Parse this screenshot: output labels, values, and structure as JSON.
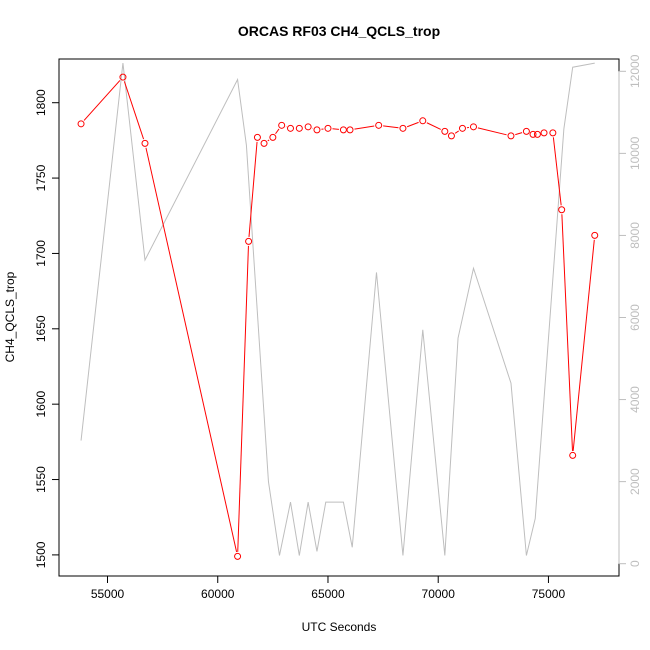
{
  "chart_data": {
    "type": "line",
    "title": "ORCAS RF03 CH4_QCLS_trop",
    "xlabel": "UTC Seconds",
    "ylabel": "CH4_QCLS_trop",
    "xlim": [
      52800,
      78200
    ],
    "ylim": [
      1486,
      1829
    ],
    "y2lim": [
      -300,
      12300
    ],
    "x_ticks": [
      55000,
      60000,
      65000,
      70000,
      75000
    ],
    "y_ticks": [
      1500,
      1550,
      1600,
      1650,
      1700,
      1750,
      1800
    ],
    "y2_ticks": [
      0,
      2000,
      4000,
      6000,
      8000,
      10000,
      12000
    ],
    "colors": {
      "primary": "#ff0000",
      "secondary": "#bebebe",
      "axis": "#000000",
      "axis2": "#bebebe"
    },
    "series": [
      {
        "axis": "left",
        "style": "line+points",
        "x": [
          53800,
          55700,
          56700,
          60900,
          61400,
          61800,
          62100,
          62500,
          62900,
          63300,
          63700,
          64100,
          64500,
          65000,
          65700,
          66000,
          67300,
          68400,
          69300,
          70300,
          70600,
          71100,
          71600,
          73300,
          74000,
          74300,
          74500,
          74800,
          75200,
          75600,
          76100,
          77100
        ],
        "y": [
          1786,
          1817,
          1773,
          1499,
          1708,
          1777,
          1773,
          1777,
          1785,
          1783,
          1783,
          1784,
          1782,
          1783,
          1782,
          1782,
          1785,
          1783,
          1788,
          1781,
          1778,
          1783,
          1784,
          1778,
          1781,
          1779,
          1779,
          1780,
          1780,
          1729,
          1566,
          1712
        ]
      },
      {
        "axis": "right",
        "style": "line",
        "x": [
          53800,
          55700,
          56700,
          60900,
          61300,
          62300,
          62800,
          63300,
          63700,
          64100,
          64500,
          64900,
          65700,
          66100,
          67200,
          68400,
          69300,
          70300,
          70900,
          71600,
          73300,
          74000,
          74400,
          75700,
          76100,
          77100
        ],
        "y": [
          3000,
          12200,
          7400,
          11800,
          10200,
          2000,
          200,
          1500,
          200,
          1500,
          300,
          1500,
          1500,
          400,
          7100,
          200,
          5700,
          200,
          5500,
          7200,
          4400,
          200,
          1100,
          10600,
          12100,
          12200
        ]
      }
    ]
  }
}
